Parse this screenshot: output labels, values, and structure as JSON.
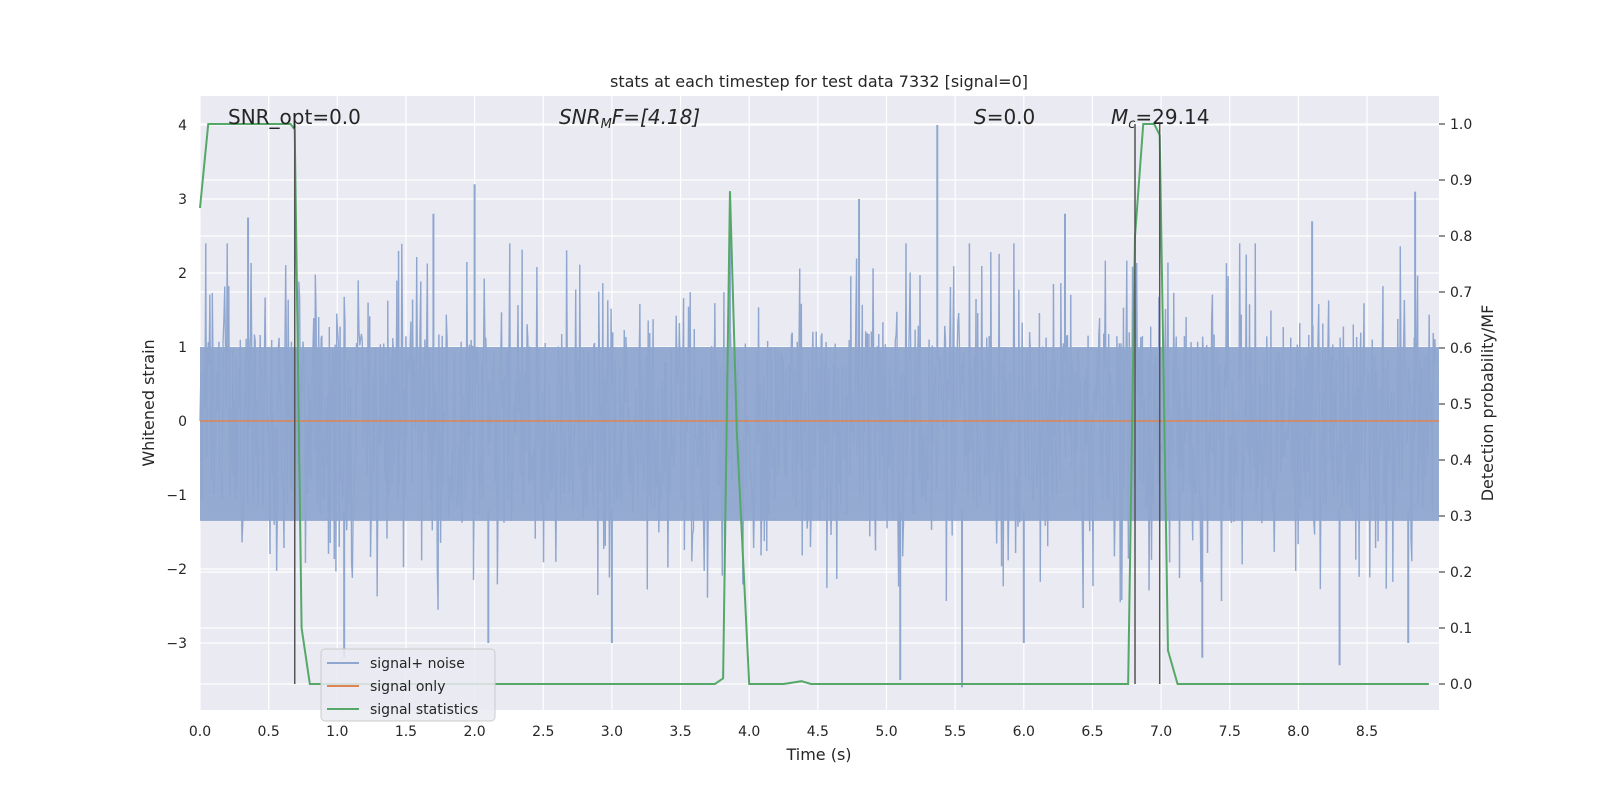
{
  "chart_data": {
    "type": "line",
    "title": "stats at each timestep for test data 7332 [signal=0]",
    "xlabel": "Time (s)",
    "ylabel": "Whitened strain",
    "y2label": "Detection probability/MF",
    "xlim": [
      0.0,
      9.0
    ],
    "ylim": [
      -3.9,
      4.35
    ],
    "y2lim": [
      -0.048,
      1.04
    ],
    "x_ticks": [
      "0.0",
      "0.5",
      "1.0",
      "1.5",
      "2.0",
      "2.5",
      "3.0",
      "3.5",
      "4.0",
      "4.5",
      "5.0",
      "5.5",
      "6.0",
      "6.5",
      "7.0",
      "7.5",
      "8.0",
      "8.5"
    ],
    "y_ticks": [
      "4",
      "3",
      "2",
      "1",
      "0",
      "−1",
      "−2",
      "−3"
    ],
    "y2_ticks": [
      "1.0",
      "0.9",
      "0.8",
      "0.7",
      "0.6",
      "0.5",
      "0.4",
      "0.3",
      "0.2",
      "0.1",
      "0.0"
    ],
    "grid": true,
    "legend_position": "lower-left",
    "annotations": {
      "snr_opt": "SNR_opt=0.0",
      "snr_mf_prefix": "SNR",
      "snr_mf_sub": "M",
      "snr_mf_suffix": "F=[4.18]",
      "s_italic": "S",
      "s_value": "=0.0",
      "mc_italic": "M",
      "mc_sub": "c",
      "mc_value": "=29.14"
    },
    "vertical_markers": [
      0.69,
      6.81,
      6.99
    ],
    "series": [
      {
        "name": "signal+ noise",
        "color": "#8fa6cf",
        "style": "noise",
        "band": [
          -1.35,
          1.0
        ],
        "peaks_up": [
          [
            2.0,
            3.2
          ],
          [
            5.37,
            4.0
          ],
          [
            8.85,
            3.1
          ],
          [
            3.86,
            2.9
          ],
          [
            4.8,
            3.0
          ],
          [
            1.7,
            2.8
          ],
          [
            6.3,
            2.8
          ],
          [
            0.35,
            2.75
          ],
          [
            8.1,
            2.7
          ]
        ],
        "peaks_down": [
          [
            5.1,
            -3.5
          ],
          [
            5.55,
            -3.6
          ],
          [
            8.3,
            -3.3
          ],
          [
            8.8,
            -3.0
          ],
          [
            3.0,
            -3.0
          ],
          [
            6.0,
            -3.0
          ],
          [
            2.1,
            -3.0
          ],
          [
            1.05,
            -3.2
          ],
          [
            7.3,
            -3.2
          ]
        ]
      },
      {
        "name": "signal only",
        "color": "#dd8452",
        "y": 0.0
      },
      {
        "name": "signal statistics",
        "color": "#55a868",
        "axis": "right",
        "x": [
          0.0,
          0.06,
          0.1,
          0.66,
          0.69,
          0.74,
          0.8,
          3.75,
          3.81,
          3.86,
          3.91,
          4.0,
          4.25,
          4.38,
          4.45,
          4.8,
          5.2,
          6.5,
          6.76,
          6.81,
          6.87,
          6.95,
          6.99,
          7.05,
          7.12,
          8.95
        ],
        "y": [
          0.85,
          1.0,
          1.0,
          1.0,
          0.99,
          0.1,
          0.0,
          0.0,
          0.01,
          0.88,
          0.45,
          0.0,
          0.0,
          0.005,
          0.0,
          0.0,
          0.0,
          0.0,
          0.0,
          0.8,
          1.0,
          1.0,
          0.98,
          0.06,
          0.0,
          0.0
        ]
      }
    ]
  }
}
